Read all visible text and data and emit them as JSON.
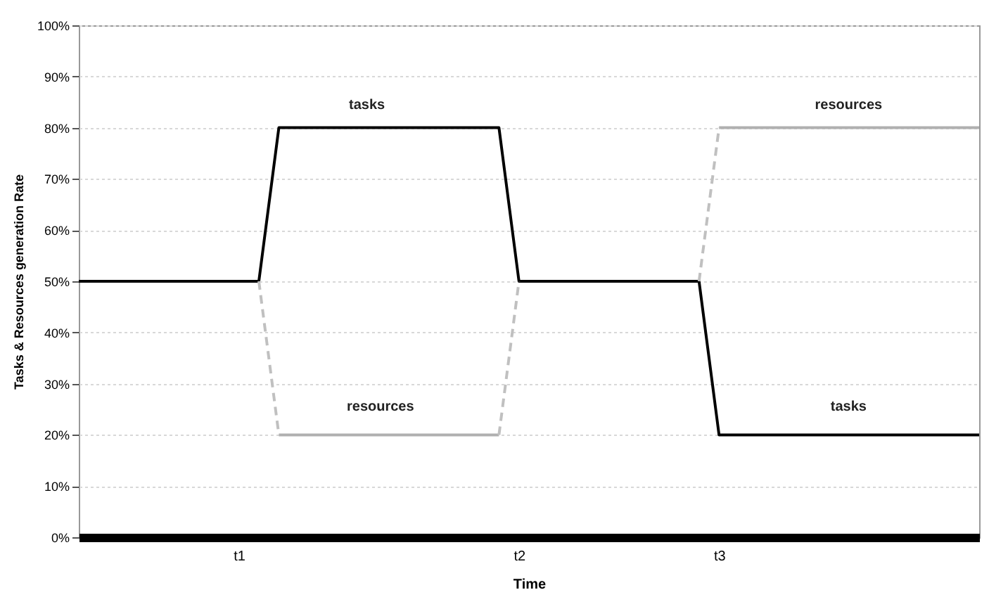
{
  "chart_data": {
    "type": "line",
    "xlabel": "Time",
    "ylabel": "Tasks  &  Resources generation Rate",
    "categories": [
      null,
      null,
      null,
      null,
      null,
      null,
      null,
      null,
      "t1",
      null,
      null,
      null,
      null,
      null,
      null,
      null,
      null,
      null,
      null,
      null,
      null,
      null,
      "t2",
      null,
      null,
      null,
      null,
      null,
      null,
      null,
      null,
      null,
      "t3",
      null,
      null,
      null,
      null,
      null,
      null,
      null,
      null,
      null,
      null,
      null,
      null,
      null
    ],
    "ylim": [
      0,
      100
    ],
    "yticks": [
      {
        "value": 0,
        "label": "0%"
      },
      {
        "value": 10,
        "label": "10%"
      },
      {
        "value": 20,
        "label": "20%"
      },
      {
        "value": 30,
        "label": "30%"
      },
      {
        "value": 40,
        "label": "40%"
      },
      {
        "value": 50,
        "label": "50%"
      },
      {
        "value": 60,
        "label": "60%"
      },
      {
        "value": 70,
        "label": "70%"
      },
      {
        "value": 80,
        "label": "80%"
      },
      {
        "value": 90,
        "label": "90%"
      },
      {
        "value": 100,
        "label": "100%"
      }
    ],
    "grid": "y",
    "marker": "none",
    "series": [
      {
        "color": "#000000",
        "line_style": "solid",
        "values": [
          50,
          50,
          50,
          50,
          50,
          50,
          50,
          50,
          50,
          50,
          80,
          80,
          80,
          80,
          80,
          80,
          80,
          80,
          80,
          80,
          80,
          80,
          50,
          50,
          50,
          50,
          50,
          50,
          50,
          50,
          50,
          50,
          20,
          20,
          20,
          20,
          20,
          20,
          20,
          20,
          20,
          20,
          20,
          20,
          20,
          20
        ]
      },
      {
        "color": "#b0b0b0",
        "line_style": "solid",
        "values": [
          null,
          null,
          null,
          null,
          null,
          null,
          null,
          null,
          null,
          null,
          20,
          20,
          20,
          20,
          20,
          20,
          20,
          20,
          20,
          20,
          20,
          20,
          null,
          null,
          null,
          null,
          null,
          null,
          null,
          null,
          null,
          null,
          80,
          80,
          80,
          80,
          80,
          80,
          80,
          80,
          80,
          80,
          80,
          80,
          80,
          80
        ]
      },
      {
        "color": "#c0c0c0",
        "line_style": "dashed",
        "values": [
          null,
          null,
          null,
          null,
          null,
          null,
          null,
          null,
          null,
          50,
          20,
          null,
          null,
          null,
          null,
          null,
          null,
          null,
          null,
          null,
          null,
          20,
          50,
          null,
          null,
          null,
          null,
          null,
          null,
          null,
          null,
          50,
          80,
          null,
          null,
          null,
          null,
          null,
          null,
          null,
          null,
          null,
          null,
          null,
          null,
          null
        ]
      }
    ],
    "annotations": [
      "tasks",
      "resources",
      "resources",
      "tasks"
    ]
  }
}
